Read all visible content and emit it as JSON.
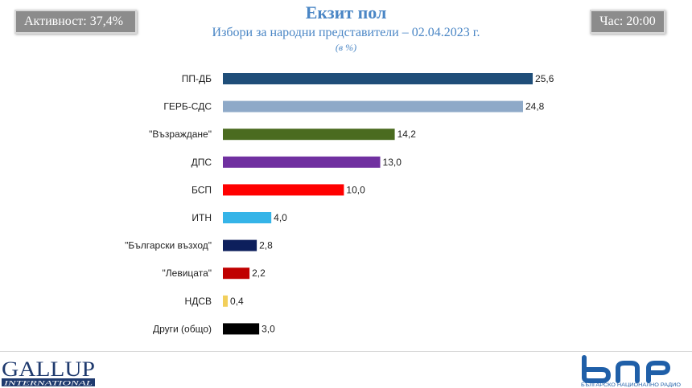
{
  "header": {
    "turnout": "Активност: 37,4%",
    "time": "Час: 20:00",
    "title": "Екзит пол",
    "subtitle": "Избори за народни представители – 02.04.2023  г.",
    "unit": "(в %)"
  },
  "chart_data": {
    "type": "bar",
    "orientation": "horizontal",
    "title": "Екзит пол",
    "subtitle": "Избори за народни представители – 02.04.2023  г.",
    "unit_label": "(в %)",
    "categories": [
      "ПП-ДБ",
      "ГЕРБ-СДС",
      "\"Възраждане\"",
      "ДПС",
      "БСП",
      "ИТН",
      "\"Български възход\"",
      "\"Левицата\"",
      "НДСВ",
      "Други (общо)"
    ],
    "values": [
      25.6,
      24.8,
      14.2,
      13.0,
      10.0,
      4.0,
      2.8,
      2.2,
      0.4,
      3.0
    ],
    "value_labels": [
      "25,6",
      "24,8",
      "14,2",
      "13,0",
      "10,0",
      "4,0",
      "2,8",
      "2,2",
      "0,4",
      "3,0"
    ],
    "colors": [
      "#1f4e79",
      "#8ea9c8",
      "#4a6b1f",
      "#7030a0",
      "#ff0000",
      "#35b4e8",
      "#0d1f5c",
      "#c00000",
      "#f2cf5b",
      "#000000"
    ],
    "xlim": [
      0,
      27
    ],
    "grid": false,
    "legend": "none"
  },
  "footer": {
    "gallup_name": "GALLUP",
    "gallup_sub": "INTERNATIONAL",
    "bnr_sub": "БЪЛГАРСКО НАЦИОНАЛНО РАДИО"
  }
}
